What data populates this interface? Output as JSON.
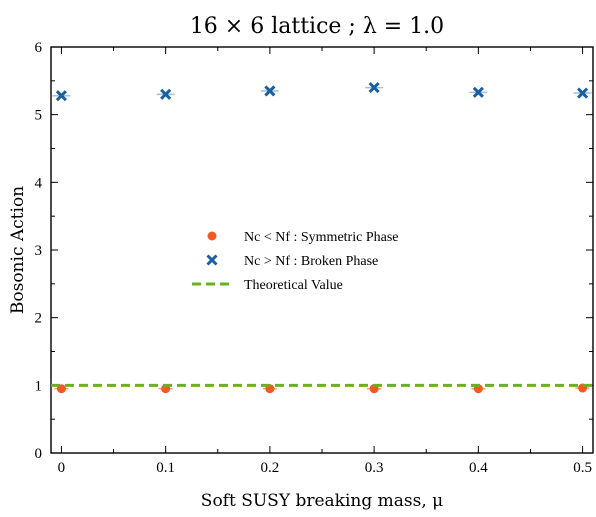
{
  "chart_data": {
    "type": "scatter",
    "title": "16 × 6 lattice ; λ = 1.0",
    "xlabel": "Soft SUSY breaking mass, μ",
    "ylabel": "Bosonic Action",
    "xlim": [
      -0.01,
      0.51
    ],
    "ylim": [
      0,
      6
    ],
    "xticks": [
      0,
      0.1,
      0.2,
      0.3,
      0.4,
      0.5
    ],
    "xtick_labels": [
      "0",
      "0.1",
      "0.2",
      "0.3",
      "0.4",
      "0.5"
    ],
    "yticks": [
      0,
      1,
      2,
      3,
      4,
      5,
      6
    ],
    "ytick_labels": [
      "0",
      "1",
      "2",
      "3",
      "4",
      "5",
      "6"
    ],
    "grid": false,
    "legend_position": "center",
    "series": [
      {
        "name": "Nc < Nf : Symmetric Phase",
        "marker": "circle",
        "color": "#f15a22",
        "x": [
          0,
          0.1,
          0.2,
          0.3,
          0.4,
          0.5
        ],
        "y": [
          0.95,
          0.95,
          0.95,
          0.95,
          0.95,
          0.96
        ]
      },
      {
        "name": "Nc > Nf : Broken Phase",
        "marker": "x",
        "color": "#1a5fa0",
        "x": [
          0,
          0.1,
          0.2,
          0.3,
          0.4,
          0.5
        ],
        "y": [
          5.28,
          5.3,
          5.35,
          5.4,
          5.33,
          5.32
        ]
      },
      {
        "name": "Theoretical Value",
        "marker": "dashed-line",
        "color": "#6ab023",
        "x": [
          -0.01,
          0.51
        ],
        "y": [
          1.0,
          1.0
        ]
      }
    ]
  }
}
